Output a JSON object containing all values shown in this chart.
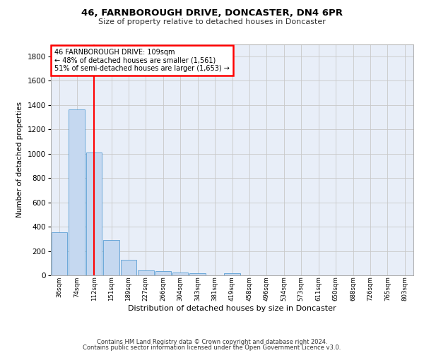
{
  "title1": "46, FARNBOROUGH DRIVE, DONCASTER, DN4 6PR",
  "title2": "Size of property relative to detached houses in Doncaster",
  "xlabel": "Distribution of detached houses by size in Doncaster",
  "ylabel": "Number of detached properties",
  "bin_labels": [
    "36sqm",
    "74sqm",
    "112sqm",
    "151sqm",
    "189sqm",
    "227sqm",
    "266sqm",
    "304sqm",
    "343sqm",
    "381sqm",
    "419sqm",
    "458sqm",
    "496sqm",
    "534sqm",
    "573sqm",
    "611sqm",
    "650sqm",
    "688sqm",
    "726sqm",
    "765sqm",
    "803sqm"
  ],
  "bar_values": [
    355,
    1365,
    1010,
    290,
    125,
    42,
    35,
    25,
    20,
    0,
    20,
    0,
    0,
    0,
    0,
    0,
    0,
    0,
    0,
    0,
    0
  ],
  "bar_color": "#c5d8f0",
  "bar_edge_color": "#5a9fd4",
  "vline_x": 2,
  "vline_color": "red",
  "annotation_text": "46 FARNBOROUGH DRIVE: 109sqm\n← 48% of detached houses are smaller (1,561)\n51% of semi-detached houses are larger (1,653) →",
  "annotation_box_color": "white",
  "annotation_box_edge_color": "red",
  "ylim": [
    0,
    1900
  ],
  "yticks": [
    0,
    200,
    400,
    600,
    800,
    1000,
    1200,
    1400,
    1600,
    1800
  ],
  "bg_color": "#e8eef8",
  "grid_color": "#c8c8c8",
  "footer1": "Contains HM Land Registry data © Crown copyright and database right 2024.",
  "footer2": "Contains public sector information licensed under the Open Government Licence v3.0."
}
